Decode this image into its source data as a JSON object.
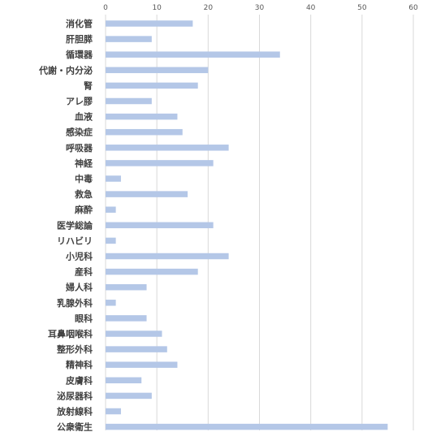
{
  "chart_data": {
    "type": "bar",
    "orientation": "horizontal",
    "categories": [
      "消化管",
      "肝胆膵",
      "循環器",
      "代謝・内分泌",
      "腎",
      "アレ膠",
      "血液",
      "感染症",
      "呼吸器",
      "神経",
      "中毒",
      "救急",
      "麻酔",
      "医学総論",
      "リハビリ",
      "小児科",
      "産科",
      "婦人科",
      "乳腺外科",
      "眼科",
      "耳鼻咽喉科",
      "整形外科",
      "精神科",
      "皮膚科",
      "泌尿器科",
      "放射線科",
      "公衆衛生"
    ],
    "values": [
      17,
      9,
      34,
      20,
      18,
      9,
      14,
      15,
      24,
      21,
      3,
      16,
      2,
      21,
      2,
      24,
      18,
      8,
      2,
      8,
      11,
      12,
      14,
      7,
      9,
      3,
      55
    ],
    "xlim": [
      0,
      60
    ],
    "xticks": [
      "0",
      "10",
      "20",
      "30",
      "40",
      "50",
      "60"
    ],
    "x_axis_position": "top",
    "grid": true,
    "bar_color": "#b4c7e7",
    "title": "",
    "xlabel": "",
    "ylabel": ""
  }
}
